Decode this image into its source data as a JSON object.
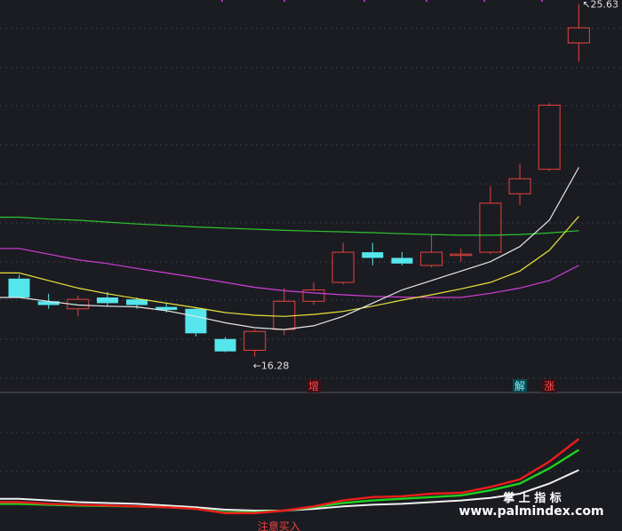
{
  "chart_data": {
    "type": "candlestick",
    "price_labels": {
      "high": "25.63",
      "low": "16.28"
    },
    "high_value": 25.63,
    "low_value": 16.28,
    "candles": [
      {
        "o": 18.35,
        "h": 18.45,
        "l": 17.85,
        "c": 17.85
      },
      {
        "o": 17.75,
        "h": 17.95,
        "l": 17.55,
        "c": 17.65
      },
      {
        "o": 17.55,
        "h": 17.9,
        "l": 17.35,
        "c": 17.8
      },
      {
        "o": 17.85,
        "h": 18.0,
        "l": 17.6,
        "c": 17.7
      },
      {
        "o": 17.8,
        "h": 17.85,
        "l": 17.55,
        "c": 17.65
      },
      {
        "o": 17.6,
        "h": 17.7,
        "l": 17.45,
        "c": 17.52
      },
      {
        "o": 17.55,
        "h": 17.58,
        "l": 16.82,
        "c": 16.9
      },
      {
        "o": 16.75,
        "h": 16.8,
        "l": 16.4,
        "c": 16.42
      },
      {
        "o": 16.45,
        "h": 17.0,
        "l": 16.28,
        "c": 16.95
      },
      {
        "o": 17.0,
        "h": 18.1,
        "l": 16.85,
        "c": 17.75
      },
      {
        "o": 17.75,
        "h": 18.25,
        "l": 17.65,
        "c": 18.05
      },
      {
        "o": 18.25,
        "h": 19.3,
        "l": 18.2,
        "c": 19.05
      },
      {
        "o": 19.05,
        "h": 19.3,
        "l": 18.7,
        "c": 18.9
      },
      {
        "o": 18.9,
        "h": 19.05,
        "l": 18.7,
        "c": 18.75
      },
      {
        "o": 18.7,
        "h": 19.5,
        "l": 18.65,
        "c": 19.05
      },
      {
        "o": 19.0,
        "h": 19.15,
        "l": 18.8,
        "c": 19.0
      },
      {
        "o": 19.05,
        "h": 20.8,
        "l": 19.0,
        "c": 20.35
      },
      {
        "o": 20.6,
        "h": 21.4,
        "l": 20.3,
        "c": 21.0
      },
      {
        "o": 21.25,
        "h": 23.0,
        "l": 21.2,
        "c": 22.95
      },
      {
        "o": 24.6,
        "h": 25.63,
        "l": 24.1,
        "c": 25.0
      }
    ],
    "ma_white": [
      17.85,
      17.75,
      17.65,
      17.62,
      17.6,
      17.5,
      17.35,
      17.18,
      17.05,
      17.0,
      17.1,
      17.35,
      17.7,
      18.05,
      18.3,
      18.55,
      18.8,
      19.2,
      19.9,
      21.3
    ],
    "ma_yellow": [
      18.5,
      18.3,
      18.1,
      17.95,
      17.82,
      17.7,
      17.58,
      17.45,
      17.38,
      17.35,
      17.4,
      17.48,
      17.62,
      17.78,
      17.92,
      18.08,
      18.25,
      18.55,
      19.1,
      20.0
    ],
    "ma_magenta": [
      19.15,
      19.0,
      18.85,
      18.75,
      18.62,
      18.5,
      18.38,
      18.25,
      18.12,
      18.03,
      17.97,
      17.92,
      17.88,
      17.86,
      17.85,
      17.85,
      17.96,
      18.1,
      18.3,
      18.7
    ],
    "ma_green": [
      19.98,
      19.93,
      19.9,
      19.85,
      19.8,
      19.76,
      19.72,
      19.69,
      19.66,
      19.63,
      19.61,
      19.59,
      19.57,
      19.54,
      19.52,
      19.5,
      19.5,
      19.52,
      19.56,
      19.62
    ],
    "markers": [
      {
        "index": 10,
        "text": "增",
        "bg": "#3a0f14",
        "fg": "#ff4a4a"
      },
      {
        "index": 17,
        "text": "解",
        "bg": "#0d4a50",
        "fg": "#7ff0ff"
      },
      {
        "index": 18,
        "text": "涨",
        "bg": "#3a0f14",
        "fg": "#ff4a4a"
      }
    ],
    "indicator": {
      "red": [
        0.1,
        0.08,
        0.07,
        0.06,
        0.05,
        0.04,
        0.02,
        -0.03,
        -0.03,
        0.0,
        0.05,
        0.12,
        0.16,
        0.17,
        0.2,
        0.21,
        0.28,
        0.37,
        0.58,
        0.85
      ],
      "green": [
        0.08,
        0.07,
        0.06,
        0.055,
        0.05,
        0.04,
        0.02,
        -0.02,
        -0.02,
        0.0,
        0.04,
        0.09,
        0.12,
        0.14,
        0.16,
        0.18,
        0.24,
        0.32,
        0.5,
        0.72
      ],
      "white": [
        0.14,
        0.12,
        0.1,
        0.09,
        0.08,
        0.06,
        0.04,
        0.01,
        0.0,
        0.0,
        0.02,
        0.05,
        0.07,
        0.08,
        0.1,
        0.12,
        0.15,
        0.2,
        0.32,
        0.48
      ],
      "label": "注意买入"
    },
    "colors": {
      "up": "#e8423e",
      "down": "#54e6ec",
      "bg": "#1b1c22",
      "grid": "#3a3d45",
      "ma_white": "#e6e6e6",
      "ma_yellow": "#e8e33b",
      "ma_magenta": "#d23ed8",
      "ma_green": "#2fc42f",
      "ind_red": "#ee1c1c",
      "ind_green": "#20d020",
      "ind_white": "#f2f2f2"
    }
  },
  "watermark": {
    "line1": "掌 上 指 标",
    "line2": "www.palmindex.com"
  }
}
